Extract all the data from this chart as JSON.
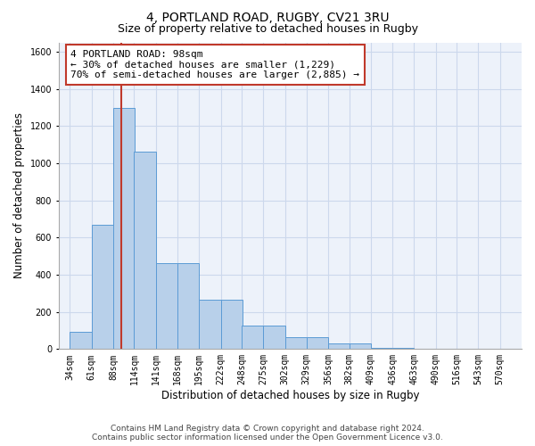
{
  "title": "4, PORTLAND ROAD, RUGBY, CV21 3RU",
  "subtitle": "Size of property relative to detached houses in Rugby",
  "xlabel": "Distribution of detached houses by size in Rugby",
  "ylabel": "Number of detached properties",
  "footer_line1": "Contains HM Land Registry data © Crown copyright and database right 2024.",
  "footer_line2": "Contains public sector information licensed under the Open Government Licence v3.0.",
  "bar_left_edges": [
    34,
    61,
    88,
    114,
    141,
    168,
    195,
    222,
    248,
    275,
    302,
    329,
    356,
    382,
    409,
    436,
    463,
    490,
    516,
    543,
    570
  ],
  "bar_labels": [
    "34sqm",
    "61sqm",
    "88sqm",
    "114sqm",
    "141sqm",
    "168sqm",
    "195sqm",
    "222sqm",
    "248sqm",
    "275sqm",
    "302sqm",
    "329sqm",
    "356sqm",
    "382sqm",
    "409sqm",
    "436sqm",
    "463sqm",
    "490sqm",
    "516sqm",
    "543sqm",
    "570sqm"
  ],
  "bar_values": [
    95,
    670,
    1295,
    1060,
    460,
    460,
    265,
    265,
    125,
    125,
    65,
    65,
    28,
    28,
    5,
    5,
    2,
    2,
    1,
    1,
    0
  ],
  "bin_width": 27,
  "ylim": [
    0,
    1650
  ],
  "yticks": [
    0,
    200,
    400,
    600,
    800,
    1000,
    1200,
    1400,
    1600
  ],
  "bar_color": "#b8d0ea",
  "bar_edge_color": "#5b9bd5",
  "grid_color": "#ccd8ec",
  "property_value": 98,
  "property_label": "4 PORTLAND ROAD: 98sqm",
  "annotation_line1": "← 30% of detached houses are smaller (1,229)",
  "annotation_line2": "70% of semi-detached houses are larger (2,885) →",
  "vline_color": "#c0392b",
  "annotation_box_edge": "#c0392b",
  "bg_color": "#edf2fa",
  "title_fontsize": 10,
  "subtitle_fontsize": 9,
  "annot_fontsize": 8,
  "tick_label_fontsize": 7,
  "ylabel_fontsize": 8.5,
  "xlabel_fontsize": 8.5,
  "xlim_left": 20,
  "xlim_right": 597
}
